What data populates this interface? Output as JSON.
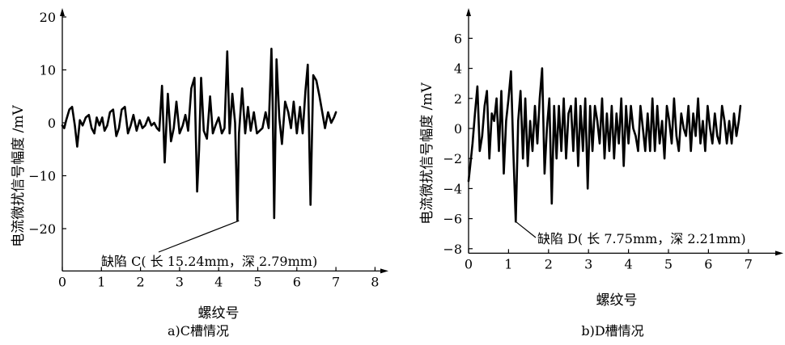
{
  "chart_data": [
    {
      "type": "line",
      "panel_caption": "a)C槽情况",
      "xlabel": "螺纹号",
      "ylabel": "电流微扰信号幅度 /mV",
      "xlim": [
        0,
        8
      ],
      "ylim": [
        -28,
        22
      ],
      "x_ticks": [
        "0",
        "1",
        "2",
        "3",
        "4",
        "5",
        "6",
        "7",
        "8"
      ],
      "y_ticks": [
        "20",
        "10",
        "0",
        "−10",
        "−20"
      ],
      "annotation": "缺陷 C( 长 15.24mm，深 2.79mm)",
      "annotation_point": {
        "x": 4.52,
        "y": -18.5
      },
      "series": [
        {
          "x": [
            0.0,
            0.05,
            0.1,
            0.18,
            0.25,
            0.32,
            0.38,
            0.45,
            0.52,
            0.6,
            0.68,
            0.75,
            0.82,
            0.88,
            0.95,
            1.02,
            1.08,
            1.15,
            1.22,
            1.3,
            1.38,
            1.45,
            1.52,
            1.6,
            1.68,
            1.75,
            1.82,
            1.9,
            1.98,
            2.05,
            2.12,
            2.2,
            2.28,
            2.35,
            2.42,
            2.48,
            2.55,
            2.62,
            2.7,
            2.78,
            2.85,
            2.92,
            3.0,
            3.08,
            3.15,
            3.22,
            3.3,
            3.38,
            3.45,
            3.5,
            3.55,
            3.62,
            3.7,
            3.78,
            3.85,
            3.92,
            4.0,
            4.08,
            4.15,
            4.22,
            4.28,
            4.35,
            4.42,
            4.48,
            4.52,
            4.6,
            4.68,
            4.75,
            4.82,
            4.9,
            4.98,
            5.05,
            5.12,
            5.2,
            5.28,
            5.35,
            5.38,
            5.42,
            5.48,
            5.55,
            5.62,
            5.7,
            5.78,
            5.85,
            5.92,
            6.0,
            6.08,
            6.15,
            6.22,
            6.28,
            6.35,
            6.42,
            6.5,
            6.58,
            6.65,
            6.72,
            6.8,
            6.88,
            6.95,
            7.0
          ],
          "y": [
            -0.5,
            -1,
            0.5,
            2.5,
            3,
            -0.5,
            -4.5,
            0.5,
            -0.5,
            1,
            1.5,
            -1,
            -2,
            1,
            -0.5,
            1,
            -1.5,
            -0.5,
            2,
            2.5,
            -2.5,
            -1,
            2.5,
            3,
            -2,
            -0.5,
            1.5,
            -1.5,
            0.5,
            -1,
            -0.5,
            1,
            -0.5,
            0,
            -1,
            -1.5,
            7,
            -7.5,
            5.5,
            -3.5,
            -1,
            4,
            -2,
            -0.5,
            1.5,
            -1.5,
            6.5,
            8.5,
            -13,
            -5,
            8.5,
            -1.5,
            -3,
            5,
            -2,
            -0.5,
            1,
            -2,
            -1,
            13.5,
            -2,
            5.5,
            0,
            -18.5,
            -2,
            6.5,
            -2,
            3,
            -1.5,
            2,
            -2,
            -1.5,
            -1,
            2,
            -1,
            14,
            4,
            -18,
            12,
            1,
            -4,
            4,
            2,
            -1,
            4,
            -2,
            3,
            -2,
            6,
            11,
            -15.5,
            9,
            8,
            5,
            2,
            -1,
            2,
            0,
            1,
            2
          ]
        }
      ]
    },
    {
      "type": "line",
      "panel_caption": "b)D槽情况",
      "xlabel": "螺纹号",
      "ylabel": "电流微扰信号幅度 /mV",
      "xlim": [
        0,
        7.3
      ],
      "ylim": [
        -8.3,
        7.5
      ],
      "x_ticks": [
        "0",
        "1",
        "2",
        "3",
        "4",
        "5",
        "6",
        "7"
      ],
      "y_ticks": [
        "6",
        "4",
        "2",
        "0",
        "−2",
        "−4",
        "−6",
        "−8"
      ],
      "annotation": "缺陷 D( 长 7.75mm，深 2.21mm)",
      "annotation_point": {
        "x": 1.18,
        "y": -6.2
      },
      "series": [
        {
          "x": [
            0.0,
            0.04,
            0.1,
            0.16,
            0.22,
            0.28,
            0.34,
            0.4,
            0.46,
            0.52,
            0.58,
            0.64,
            0.7,
            0.76,
            0.82,
            0.88,
            0.94,
            1.0,
            1.06,
            1.12,
            1.18,
            1.24,
            1.3,
            1.36,
            1.42,
            1.48,
            1.54,
            1.6,
            1.66,
            1.72,
            1.78,
            1.84,
            1.9,
            1.96,
            2.02,
            2.08,
            2.14,
            2.2,
            2.26,
            2.32,
            2.38,
            2.44,
            2.5,
            2.56,
            2.62,
            2.68,
            2.74,
            2.8,
            2.86,
            2.92,
            2.98,
            3.04,
            3.1,
            3.16,
            3.22,
            3.28,
            3.34,
            3.4,
            3.46,
            3.52,
            3.58,
            3.64,
            3.7,
            3.76,
            3.82,
            3.88,
            3.94,
            4.0,
            4.06,
            4.12,
            4.18,
            4.24,
            4.3,
            4.36,
            4.42,
            4.48,
            4.54,
            4.6,
            4.66,
            4.72,
            4.78,
            4.84,
            4.9,
            4.96,
            5.02,
            5.08,
            5.14,
            5.2,
            5.26,
            5.32,
            5.38,
            5.44,
            5.5,
            5.56,
            5.62,
            5.68,
            5.74,
            5.8,
            5.86,
            5.92,
            5.98,
            6.04,
            6.1,
            6.16,
            6.22,
            6.28,
            6.34,
            6.4,
            6.46,
            6.52,
            6.58,
            6.64,
            6.7,
            6.76,
            6.8
          ],
          "y": [
            -3.5,
            -2.5,
            -1,
            1,
            2.8,
            -1.5,
            -0.5,
            1.5,
            2.5,
            -2,
            1,
            0.5,
            2,
            -1.5,
            2.5,
            -3,
            0.5,
            2,
            3.8,
            -1.5,
            -6.2,
            0.5,
            2.5,
            -2,
            2,
            -2.5,
            0.5,
            -1.5,
            1.5,
            -1,
            2,
            4,
            -3,
            0,
            2,
            -5,
            1.5,
            -2,
            1.5,
            -1.5,
            2,
            -2,
            1,
            1.5,
            -1.5,
            2,
            -2.5,
            1.5,
            -1.5,
            2,
            -4,
            1.5,
            -1.5,
            1.5,
            0.5,
            -1,
            2,
            -2,
            1,
            -1.5,
            1.5,
            -2,
            1,
            -1,
            2,
            -2.5,
            1.5,
            -1,
            1.5,
            0,
            -0.5,
            -1.5,
            1.5,
            0,
            -1.5,
            1,
            -1.5,
            2,
            -1.5,
            1.5,
            -1,
            0.5,
            -2,
            1.5,
            0.5,
            -1,
            2,
            -0.5,
            -1.5,
            1,
            0,
            -0.5,
            1.5,
            -1.5,
            1,
            -0.5,
            2,
            -1,
            0.5,
            -1.5,
            1.5,
            0,
            -1,
            1,
            -0.5,
            -1,
            1.5,
            0.5,
            -1,
            0.5,
            -1,
            1,
            -0.5,
            0.5,
            1.5
          ]
        }
      ]
    }
  ]
}
